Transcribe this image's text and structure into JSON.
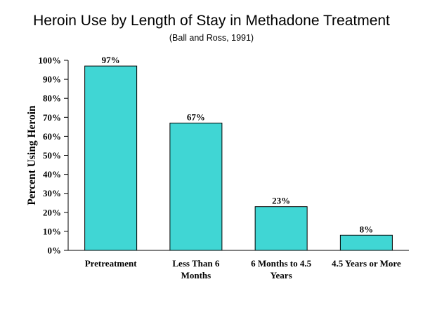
{
  "title": "Heroin Use by Length of Stay in Methadone Treatment",
  "subtitle": "(Ball and Ross, 1991)",
  "chart_data": {
    "type": "bar",
    "title": "Heroin Use by Length of Stay in Methadone Treatment",
    "subtitle": "(Ball and Ross, 1991)",
    "xlabel": "",
    "ylabel": "Percent Using Heroin",
    "categories": [
      [
        "Pretreatment"
      ],
      [
        "Less Than 6",
        "Months"
      ],
      [
        "6 Months to 4.5",
        "Years"
      ],
      [
        "4.5 Years or More"
      ]
    ],
    "values": [
      97,
      67,
      23,
      8
    ],
    "data_labels": [
      "97%",
      "67%",
      "23%",
      "8%"
    ],
    "ylim": [
      0,
      100
    ],
    "yticks": [
      0,
      10,
      20,
      30,
      40,
      50,
      60,
      70,
      80,
      90,
      100
    ],
    "ytick_labels": [
      "0%",
      "10%",
      "20%",
      "30%",
      "40%",
      "50%",
      "60%",
      "70%",
      "80%",
      "90%",
      "100%"
    ],
    "bar_color": "#40d6d4",
    "grid": false,
    "legend": "none"
  }
}
